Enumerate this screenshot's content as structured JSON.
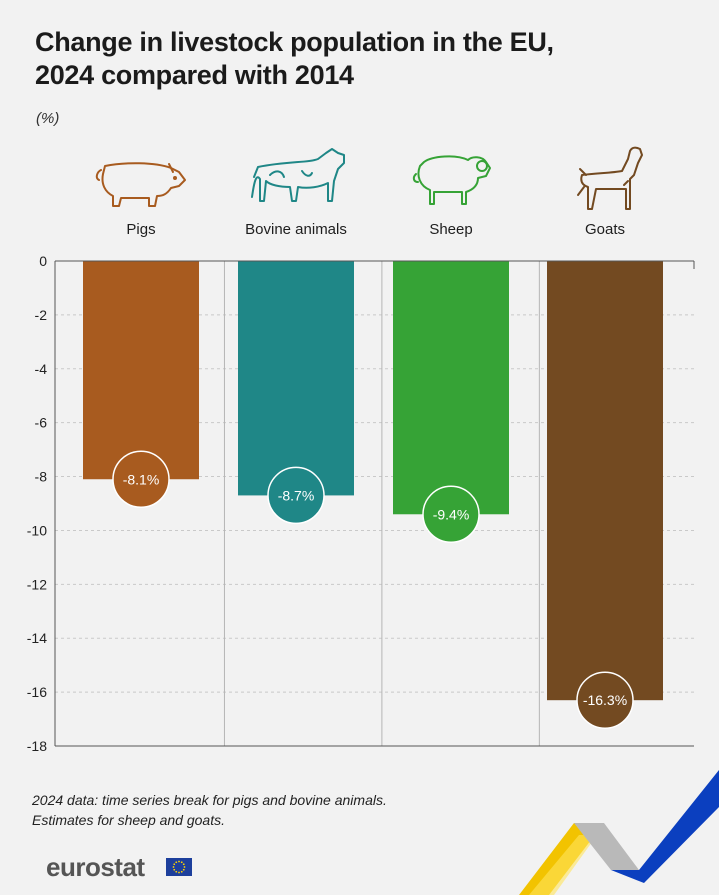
{
  "title_line1": "Change in livestock population in the EU,",
  "title_line2": "2024 compared with 2014",
  "unit": "(%)",
  "chart_data": {
    "type": "bar",
    "categories": [
      "Pigs",
      "Bovine animals",
      "Sheep",
      "Goats"
    ],
    "values": [
      -8.1,
      -8.7,
      -9.4,
      -16.3
    ],
    "value_labels": [
      "-8.1%",
      "-8.7%",
      "-9.4%",
      "-16.3%"
    ],
    "ylim": [
      -18,
      0
    ],
    "yticks": [
      0,
      -2,
      -4,
      -6,
      -8,
      -10,
      -12,
      -14,
      -16,
      -18
    ],
    "colors": [
      "#a85b1f",
      "#1f8787",
      "#36a336",
      "#734a21"
    ],
    "icons": [
      "pig-icon",
      "cow-icon",
      "sheep-icon",
      "goat-icon"
    ],
    "grid": "horizontal-dashed"
  },
  "footnote_line1": "2024 data: time series break for pigs and bovine animals.",
  "footnote_line2": "Estimates for sheep and goats.",
  "logo_text": "eurostat"
}
